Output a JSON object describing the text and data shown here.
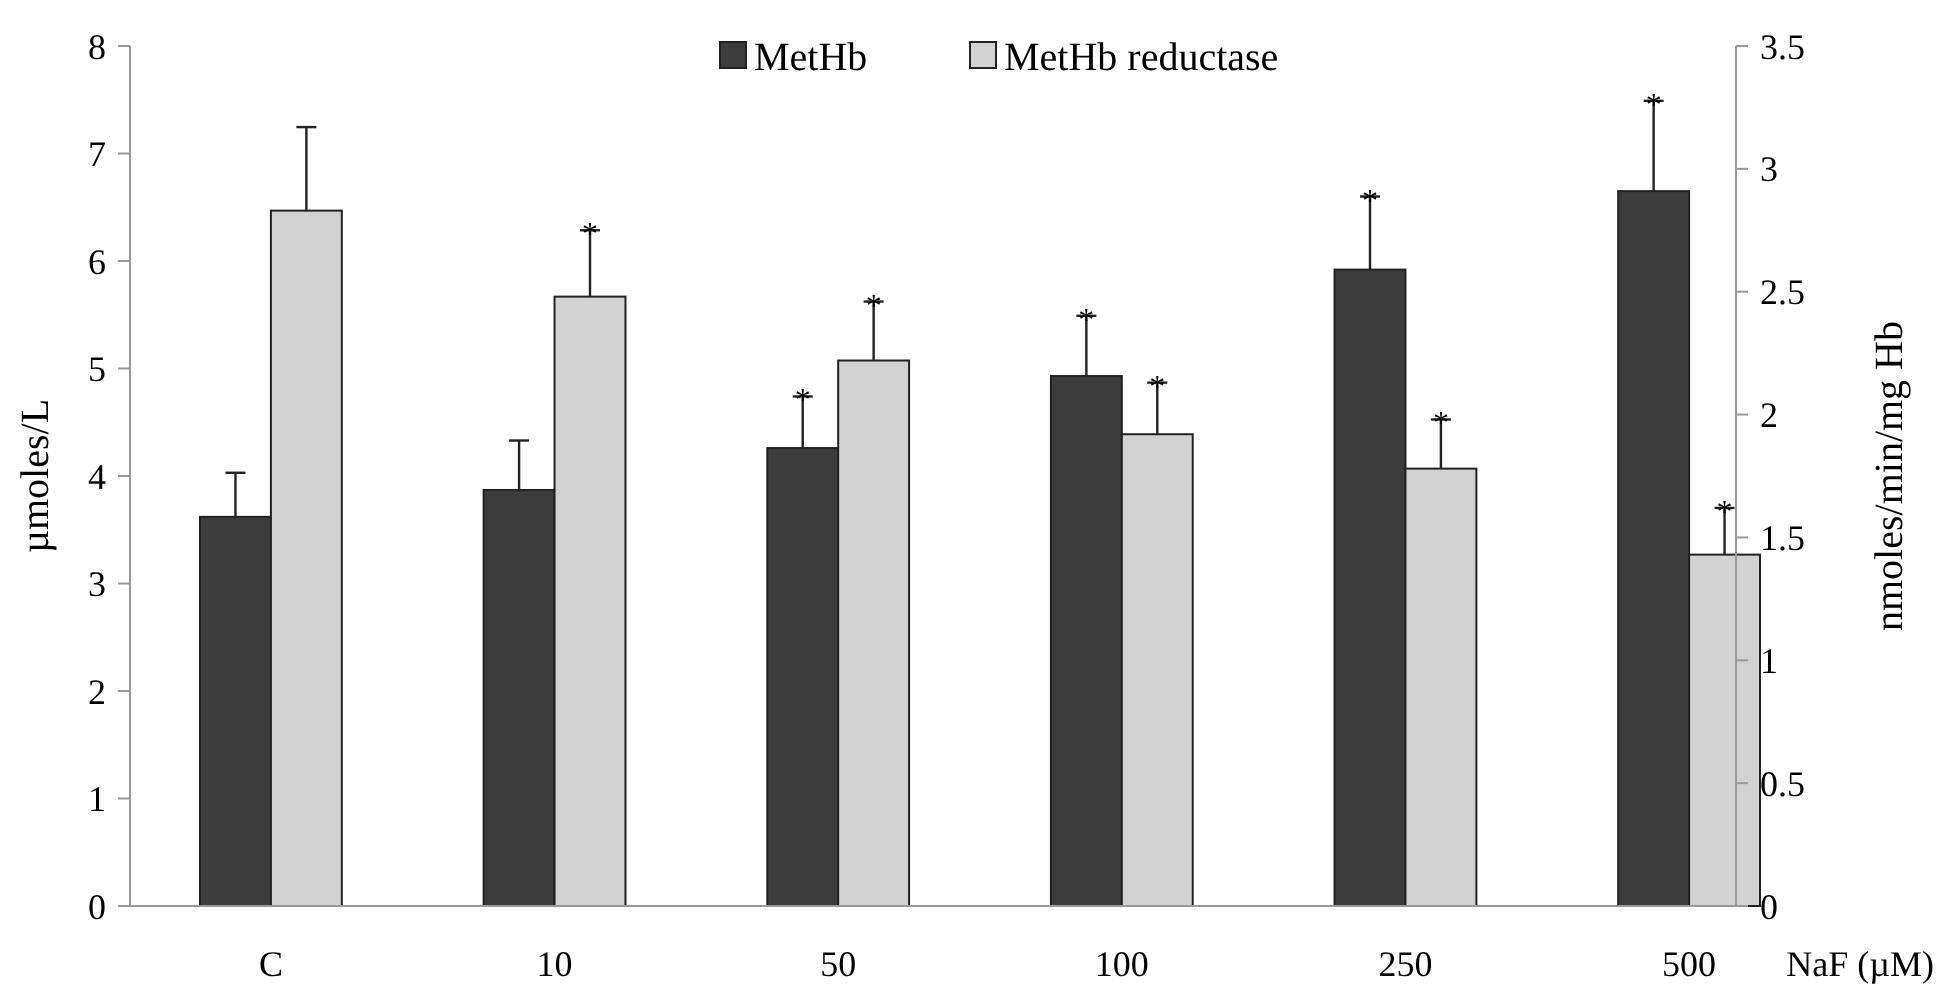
{
  "chart_data": {
    "type": "bar",
    "xlabel": "NaF (µM)",
    "ylabel": "µmoles/L",
    "y2label": "nmoles/min/mg Hb",
    "categories": [
      "C",
      "10",
      "50",
      "100",
      "250",
      "500"
    ],
    "series": [
      {
        "name": "MetHb",
        "color": "#3c3c3c",
        "values": [
          3.62,
          3.87,
          4.26,
          4.93,
          5.92,
          6.65
        ],
        "errors": [
          [
            3.62,
            4.03
          ],
          [
            3.87,
            4.33
          ],
          [
            4.26,
            4.74
          ],
          [
            4.93,
            5.49
          ],
          [
            5.92,
            6.6
          ],
          [
            6.65,
            7.49
          ]
        ],
        "value_labels": [
          null,
          null,
          "*",
          "*",
          "*",
          "*"
        ]
      },
      {
        "name": "MetHb reductase",
        "color": "#d2d2d2",
        "axis": "y2",
        "values": [
          2.83,
          2.48,
          2.22,
          1.92,
          1.78,
          1.43
        ],
        "errors": [
          [
            2.83,
            3.17
          ],
          [
            2.48,
            2.75
          ],
          [
            2.22,
            2.46
          ],
          [
            1.92,
            2.13
          ],
          [
            1.78,
            1.98
          ],
          [
            1.43,
            1.62
          ]
        ],
        "value_labels": [
          null,
          "*",
          "*",
          "*",
          "*",
          "*"
        ]
      }
    ],
    "ylim": [
      0,
      8
    ],
    "yticks": [
      0,
      1,
      2,
      3,
      4,
      5,
      6,
      7,
      8
    ],
    "y2lim": [
      0,
      3.5
    ],
    "y2ticks": [
      0,
      0.5,
      1,
      1.5,
      2,
      2.5,
      3,
      3.5
    ],
    "legend": "top",
    "grid": false
  }
}
